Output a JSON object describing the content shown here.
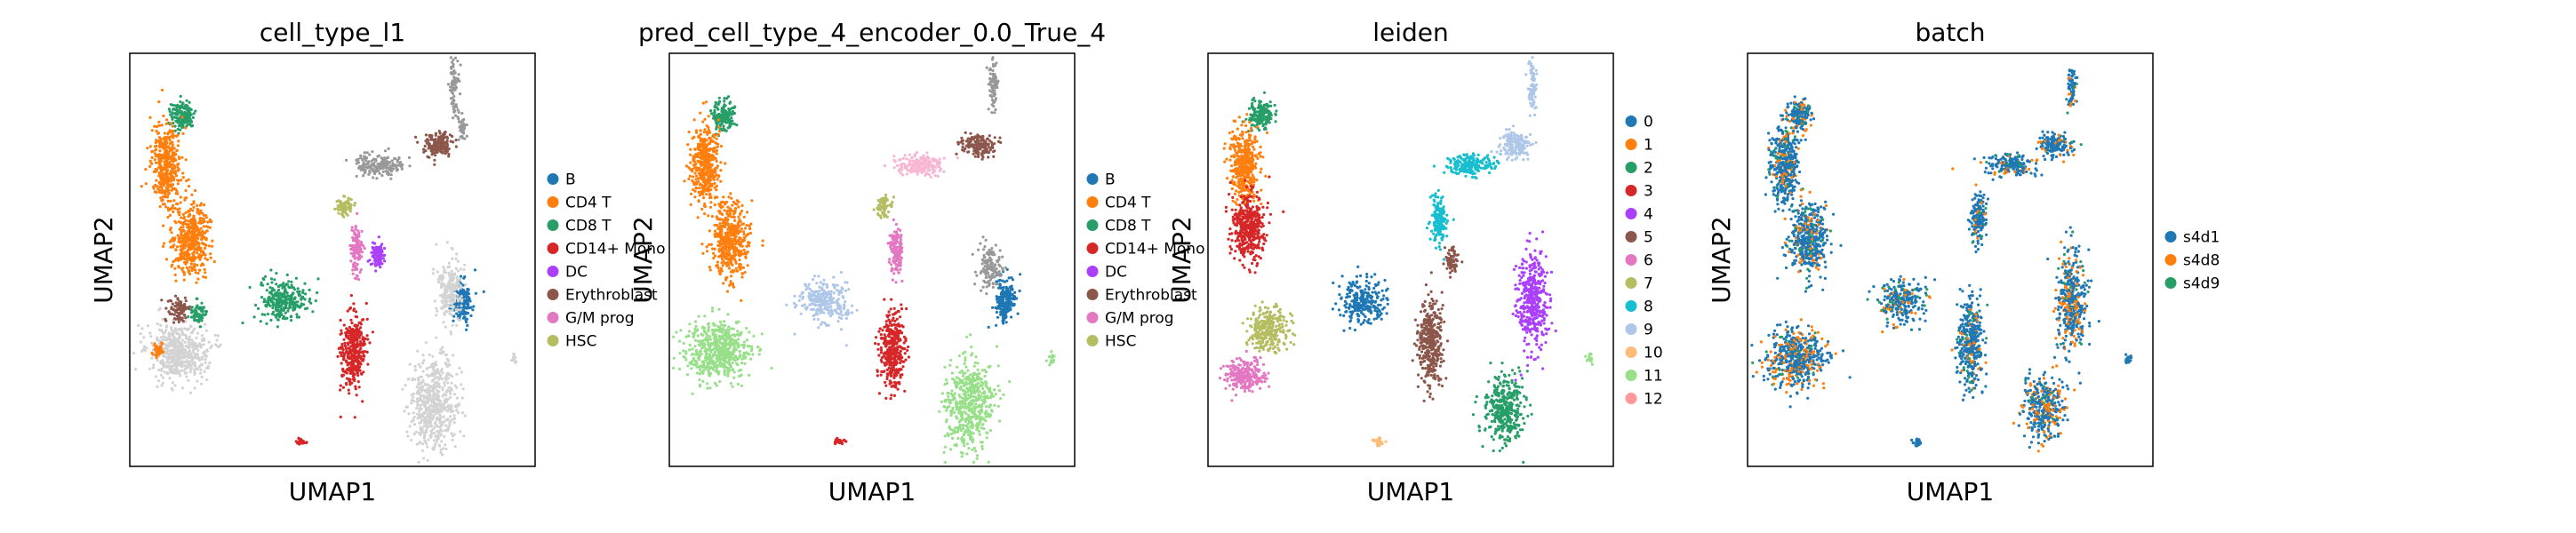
{
  "figure": {
    "note_type": "UMAP scatter panels"
  },
  "chart_data": [
    {
      "type": "scatter",
      "title": "cell_type_l1",
      "xlabel": "UMAP1",
      "ylabel": "UMAP2",
      "legend_position": "right",
      "categories": [
        "B",
        "CD4 T",
        "CD8 T",
        "CD14+ Mono",
        "DC",
        "Erythroblast",
        "G/M prog",
        "HSC"
      ],
      "colors": [
        "#1f77b4",
        "#ff7f0e",
        "#279e68",
        "#d62728",
        "#aa40fc",
        "#8c564b",
        "#e377c2",
        "#b5bd61"
      ],
      "background_color": "#d3d3d3",
      "clusters": [
        {
          "cat": 2,
          "cx": 0.13,
          "cy": 0.15,
          "rx": 0.03,
          "ry": 0.035,
          "n": 160
        },
        {
          "cat": 1,
          "cx": 0.09,
          "cy": 0.27,
          "rx": 0.035,
          "ry": 0.09,
          "n": 420
        },
        {
          "cat": 1,
          "cx": 0.15,
          "cy": 0.45,
          "rx": 0.045,
          "ry": 0.09,
          "n": 460
        },
        {
          "cat": -1,
          "cx": 0.12,
          "cy": 0.72,
          "rx": 0.07,
          "ry": 0.07,
          "n": 520
        },
        {
          "cat": 5,
          "cx": 0.12,
          "cy": 0.62,
          "rx": 0.025,
          "ry": 0.03,
          "n": 90
        },
        {
          "cat": 2,
          "cx": 0.17,
          "cy": 0.63,
          "rx": 0.02,
          "ry": 0.03,
          "n": 60
        },
        {
          "cat": 1,
          "cx": 0.07,
          "cy": 0.72,
          "rx": 0.015,
          "ry": 0.02,
          "n": 40
        },
        {
          "cat": 2,
          "cx": 0.38,
          "cy": 0.6,
          "rx": 0.06,
          "ry": 0.05,
          "n": 260
        },
        {
          "cat": 3,
          "cx": 0.55,
          "cy": 0.72,
          "rx": 0.03,
          "ry": 0.09,
          "n": 360
        },
        {
          "cat": 6,
          "cx": 0.56,
          "cy": 0.48,
          "rx": 0.015,
          "ry": 0.06,
          "n": 130
        },
        {
          "cat": 4,
          "cx": 0.61,
          "cy": 0.49,
          "rx": 0.015,
          "ry": 0.03,
          "n": 90
        },
        {
          "cat": 7,
          "cx": 0.53,
          "cy": 0.37,
          "rx": 0.02,
          "ry": 0.025,
          "n": 70
        },
        {
          "cat": 8,
          "cx": 0.62,
          "cy": 0.27,
          "rx": 0.06,
          "ry": 0.025,
          "n": 190
        },
        {
          "cat": 5,
          "cx": 0.76,
          "cy": 0.22,
          "rx": 0.04,
          "ry": 0.03,
          "n": 160
        },
        {
          "cat": 8,
          "cx": 0.8,
          "cy": 0.08,
          "rx": 0.01,
          "ry": 0.06,
          "n": 80
        },
        {
          "cat": 8,
          "cx": 0.82,
          "cy": 0.18,
          "rx": 0.01,
          "ry": 0.03,
          "n": 40
        },
        {
          "cat": 0,
          "cx": 0.82,
          "cy": 0.6,
          "rx": 0.025,
          "ry": 0.05,
          "n": 170
        },
        {
          "cat": -1,
          "cx": 0.79,
          "cy": 0.57,
          "rx": 0.03,
          "ry": 0.08,
          "n": 200
        },
        {
          "cat": -1,
          "cx": 0.75,
          "cy": 0.85,
          "rx": 0.06,
          "ry": 0.11,
          "n": 520
        },
        {
          "cat": 3,
          "cx": 0.42,
          "cy": 0.94,
          "rx": 0.015,
          "ry": 0.008,
          "n": 25
        },
        {
          "cat": -1,
          "cx": 0.95,
          "cy": 0.74,
          "rx": 0.008,
          "ry": 0.012,
          "n": 15
        }
      ]
    },
    {
      "type": "scatter",
      "title": "pred_cell_type_4_encoder_0.0_True_4",
      "xlabel": "UMAP1",
      "ylabel": "UMAP2",
      "legend_position": "right",
      "categories": [
        "B",
        "CD4 T",
        "CD8 T",
        "CD14+ Mono",
        "DC",
        "Erythroblast",
        "G/M prog",
        "HSC"
      ],
      "colors": [
        "#1f77b4",
        "#ff7f0e",
        "#279e68",
        "#d62728",
        "#aa40fc",
        "#8c564b",
        "#e377c2",
        "#b5bd61"
      ],
      "clusters": [
        {
          "cat": 2,
          "cx": 0.13,
          "cy": 0.15,
          "rx": 0.03,
          "ry": 0.035,
          "n": 160
        },
        {
          "cat": 1,
          "cx": 0.09,
          "cy": 0.27,
          "rx": 0.035,
          "ry": 0.09,
          "n": 420
        },
        {
          "cat": 1,
          "cx": 0.15,
          "cy": 0.45,
          "rx": 0.045,
          "ry": 0.09,
          "n": 460
        },
        {
          "cat": 9,
          "cx": 0.12,
          "cy": 0.72,
          "rx": 0.08,
          "ry": 0.07,
          "n": 560
        },
        {
          "cat": 11,
          "cx": 0.38,
          "cy": 0.6,
          "rx": 0.06,
          "ry": 0.05,
          "n": 260
        },
        {
          "cat": 3,
          "cx": 0.55,
          "cy": 0.72,
          "rx": 0.03,
          "ry": 0.09,
          "n": 360
        },
        {
          "cat": 6,
          "cx": 0.56,
          "cy": 0.48,
          "rx": 0.015,
          "ry": 0.06,
          "n": 130
        },
        {
          "cat": 7,
          "cx": 0.53,
          "cy": 0.37,
          "rx": 0.02,
          "ry": 0.025,
          "n": 70
        },
        {
          "cat": 10,
          "cx": 0.62,
          "cy": 0.27,
          "rx": 0.06,
          "ry": 0.025,
          "n": 190
        },
        {
          "cat": 5,
          "cx": 0.76,
          "cy": 0.22,
          "rx": 0.04,
          "ry": 0.03,
          "n": 160
        },
        {
          "cat": 12,
          "cx": 0.8,
          "cy": 0.08,
          "rx": 0.01,
          "ry": 0.06,
          "n": 80
        },
        {
          "cat": 0,
          "cx": 0.83,
          "cy": 0.6,
          "rx": 0.025,
          "ry": 0.06,
          "n": 190
        },
        {
          "cat": 13,
          "cx": 0.79,
          "cy": 0.52,
          "rx": 0.03,
          "ry": 0.05,
          "n": 130
        },
        {
          "cat": 9,
          "cx": 0.74,
          "cy": 0.85,
          "rx": 0.06,
          "ry": 0.11,
          "n": 520
        },
        {
          "cat": 3,
          "cx": 0.42,
          "cy": 0.94,
          "rx": 0.015,
          "ry": 0.008,
          "n": 25
        },
        {
          "cat": 9,
          "cx": 0.94,
          "cy": 0.74,
          "rx": 0.008,
          "ry": 0.012,
          "n": 15
        }
      ],
      "extra_colors": [
        "#c49c94",
        "#98df8a",
        "#f7b6d2",
        "#aec7e8"
      ]
    },
    {
      "type": "scatter",
      "title": "leiden",
      "xlabel": "UMAP1",
      "ylabel": "UMAP2",
      "legend_position": "right",
      "categories": [
        "0",
        "1",
        "2",
        "3",
        "4",
        "5",
        "6",
        "7",
        "8",
        "9",
        "10",
        "11",
        "12"
      ],
      "colors": [
        "#1f77b4",
        "#ff7f0e",
        "#279e68",
        "#d62728",
        "#aa40fc",
        "#8c564b",
        "#e377c2",
        "#b5bd61",
        "#17becf",
        "#aec7e8",
        "#ffbb78",
        "#98df8a",
        "#ff9896"
      ],
      "clusters": [
        {
          "cat": 2,
          "cx": 0.13,
          "cy": 0.15,
          "rx": 0.03,
          "ry": 0.035,
          "n": 160
        },
        {
          "cat": 1,
          "cx": 0.09,
          "cy": 0.27,
          "rx": 0.035,
          "ry": 0.09,
          "n": 420
        },
        {
          "cat": 3,
          "cx": 0.1,
          "cy": 0.42,
          "rx": 0.04,
          "ry": 0.08,
          "n": 420
        },
        {
          "cat": 7,
          "cx": 0.15,
          "cy": 0.67,
          "rx": 0.05,
          "ry": 0.05,
          "n": 280
        },
        {
          "cat": 6,
          "cx": 0.09,
          "cy": 0.78,
          "rx": 0.05,
          "ry": 0.04,
          "n": 240
        },
        {
          "cat": 0,
          "cx": 0.38,
          "cy": 0.6,
          "rx": 0.06,
          "ry": 0.05,
          "n": 260
        },
        {
          "cat": 5,
          "cx": 0.55,
          "cy": 0.7,
          "rx": 0.03,
          "ry": 0.1,
          "n": 380
        },
        {
          "cat": 5,
          "cx": 0.6,
          "cy": 0.5,
          "rx": 0.015,
          "ry": 0.03,
          "n": 70
        },
        {
          "cat": 8,
          "cx": 0.57,
          "cy": 0.4,
          "rx": 0.02,
          "ry": 0.06,
          "n": 160
        },
        {
          "cat": 8,
          "cx": 0.65,
          "cy": 0.27,
          "rx": 0.06,
          "ry": 0.025,
          "n": 190
        },
        {
          "cat": 9,
          "cx": 0.76,
          "cy": 0.22,
          "rx": 0.04,
          "ry": 0.03,
          "n": 160
        },
        {
          "cat": 9,
          "cx": 0.8,
          "cy": 0.08,
          "rx": 0.01,
          "ry": 0.06,
          "n": 80
        },
        {
          "cat": 4,
          "cx": 0.8,
          "cy": 0.6,
          "rx": 0.035,
          "ry": 0.12,
          "n": 420
        },
        {
          "cat": 2,
          "cx": 0.73,
          "cy": 0.86,
          "rx": 0.05,
          "ry": 0.08,
          "n": 360
        },
        {
          "cat": 10,
          "cx": 0.42,
          "cy": 0.94,
          "rx": 0.015,
          "ry": 0.008,
          "n": 25
        },
        {
          "cat": 11,
          "cx": 0.94,
          "cy": 0.74,
          "rx": 0.008,
          "ry": 0.012,
          "n": 15
        }
      ]
    },
    {
      "type": "scatter",
      "title": "batch",
      "xlabel": "UMAP1",
      "ylabel": "UMAP2",
      "legend_position": "right",
      "categories": [
        "s4d1",
        "s4d8",
        "s4d9"
      ],
      "colors": [
        "#1f77b4",
        "#ff7f0e",
        "#279e68"
      ],
      "mixing": [
        0.78,
        0.14,
        0.08
      ],
      "clusters": [
        {
          "cat": -2,
          "cx": 0.13,
          "cy": 0.15,
          "rx": 0.03,
          "ry": 0.035,
          "n": 160
        },
        {
          "cat": -2,
          "cx": 0.09,
          "cy": 0.27,
          "rx": 0.035,
          "ry": 0.09,
          "n": 420
        },
        {
          "cat": -2,
          "cx": 0.15,
          "cy": 0.45,
          "rx": 0.045,
          "ry": 0.09,
          "n": 460
        },
        {
          "cat": -3,
          "cx": 0.12,
          "cy": 0.74,
          "rx": 0.07,
          "ry": 0.07,
          "n": 520
        },
        {
          "cat": -2,
          "cx": 0.38,
          "cy": 0.6,
          "rx": 0.06,
          "ry": 0.05,
          "n": 260
        },
        {
          "cat": -2,
          "cx": 0.55,
          "cy": 0.7,
          "rx": 0.03,
          "ry": 0.1,
          "n": 380
        },
        {
          "cat": -2,
          "cx": 0.57,
          "cy": 0.4,
          "rx": 0.02,
          "ry": 0.06,
          "n": 160
        },
        {
          "cat": -2,
          "cx": 0.65,
          "cy": 0.27,
          "rx": 0.06,
          "ry": 0.025,
          "n": 190
        },
        {
          "cat": -2,
          "cx": 0.76,
          "cy": 0.22,
          "rx": 0.04,
          "ry": 0.03,
          "n": 160
        },
        {
          "cat": -2,
          "cx": 0.8,
          "cy": 0.08,
          "rx": 0.01,
          "ry": 0.06,
          "n": 80
        },
        {
          "cat": -3,
          "cx": 0.8,
          "cy": 0.6,
          "rx": 0.035,
          "ry": 0.12,
          "n": 420
        },
        {
          "cat": -3,
          "cx": 0.73,
          "cy": 0.86,
          "rx": 0.05,
          "ry": 0.08,
          "n": 360
        },
        {
          "cat": 0,
          "cx": 0.42,
          "cy": 0.94,
          "rx": 0.015,
          "ry": 0.008,
          "n": 25
        },
        {
          "cat": 0,
          "cx": 0.94,
          "cy": 0.74,
          "rx": 0.008,
          "ry": 0.012,
          "n": 15
        }
      ]
    }
  ]
}
